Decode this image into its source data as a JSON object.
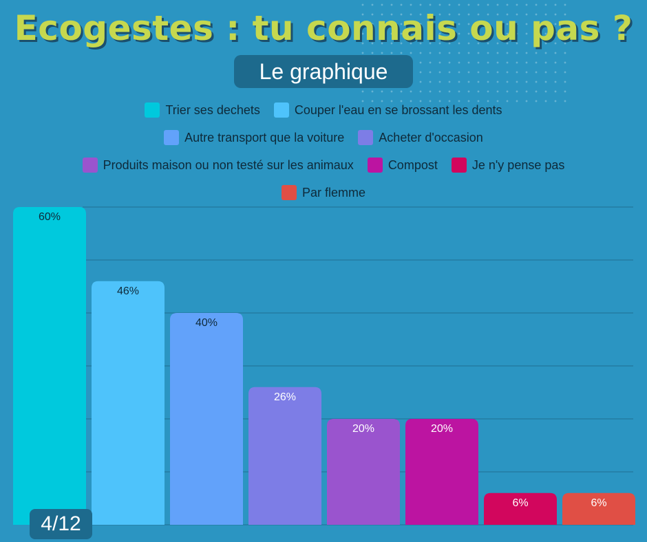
{
  "header": {
    "title": "Ecogestes : tu connais ou pas ?",
    "subtitle": "Le graphique"
  },
  "page_indicator": "4/12",
  "colors": {
    "background": "#2b95c2",
    "title": "#c6d84f",
    "gridline": "#1f6f93"
  },
  "chart_data": {
    "type": "bar",
    "categories": [
      "Trier ses dechets",
      "Couper l'eau en se brossant les dents",
      "Autre transport que la voiture",
      "Acheter d'occasion",
      "Produits maison ou non testé sur les animaux",
      "Compost",
      "Je n'y pense pas",
      "Par flemme"
    ],
    "values": [
      60,
      46,
      40,
      26,
      20,
      20,
      6,
      6
    ],
    "value_labels": [
      "60%",
      "46%",
      "40%",
      "26%",
      "20%",
      "20%",
      "6%",
      "6%"
    ],
    "colors": [
      "#00c9dd",
      "#4ec3fb",
      "#62a2fa",
      "#7d7de6",
      "#9a54ce",
      "#bc14a1",
      "#d2065d",
      "#e04f45"
    ],
    "label_colors": [
      "#0e2a3a",
      "#0e2a3a",
      "#0e2a3a",
      "#ffffff",
      "#ffffff",
      "#ffffff",
      "#ffffff",
      "#ffffff"
    ],
    "ylim": [
      0,
      60
    ],
    "grid": true,
    "legend_position": "top",
    "title": "",
    "xlabel": "",
    "ylabel": ""
  },
  "legend": {
    "rows": [
      [
        0,
        1
      ],
      [
        2,
        3
      ],
      [
        4,
        5,
        6
      ],
      [
        7
      ]
    ]
  }
}
